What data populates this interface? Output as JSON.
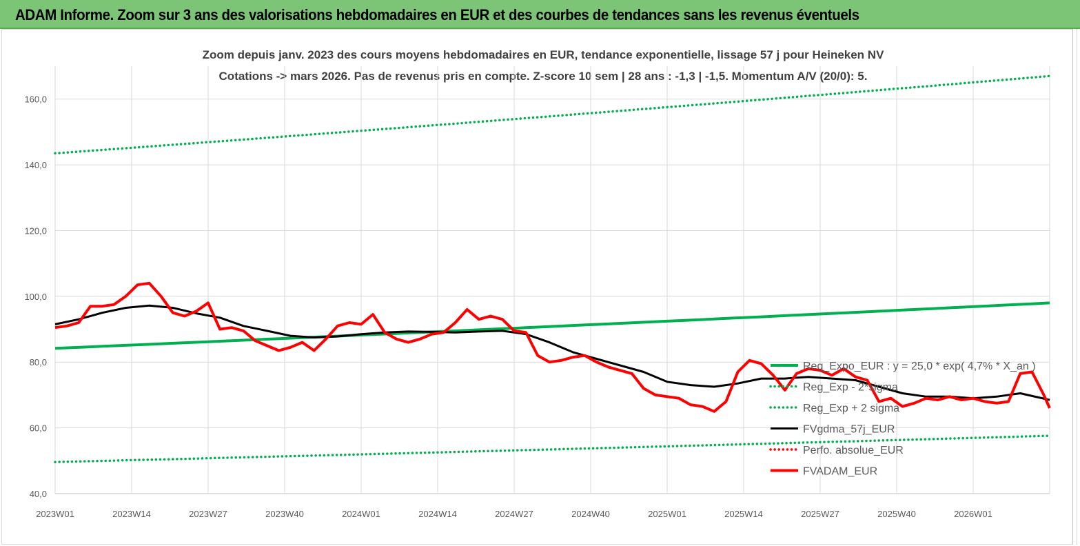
{
  "banner": {
    "title": "ADAM Informe. Zoom sur 3 ans des valorisations hebdomadaires en EUR et des courbes de tendances sans les revenus éventuels",
    "color": "#7cc576"
  },
  "chart_data": {
    "type": "line",
    "title": "Zoom depuis janv. 2023 des cours moyens hebdomadaires en EUR, tendance exponentielle, lissage 57 j pour Heineken NV",
    "subtitle": "Cotations -> mars 2026. Pas de revenus pris en  compte. Z-score 10 sem  | 28 ans : -1,3 | -1,5. Momentum A/V (20/0): 5.",
    "xlabel": "",
    "ylabel": "",
    "ylim": [
      40,
      170
    ],
    "y_ticks": [
      "40,0",
      "60,0",
      "80,0",
      "100,0",
      "120,0",
      "140,0",
      "160,0"
    ],
    "x_ticks": [
      "2023W01",
      "2023W14",
      "2023W27",
      "2023W40",
      "2024W01",
      "2024W14",
      "2024W27",
      "2024W40",
      "2025W01",
      "2025W14",
      "2025W27",
      "2025W40",
      "2026W01"
    ],
    "grid": true,
    "legend_position": "bottom-right",
    "trend_formula": {
      "base": 25.0,
      "rate": 0.047
    },
    "series": [
      {
        "name": "Reg_Expo_EUR : y = 25,0 * exp( 4,7% *  X_an )",
        "color": "#00b050",
        "style": "solid-thick",
        "x": [
          0,
          169
        ],
        "y": [
          84.2,
          98.0
        ]
      },
      {
        "name": "Reg_Exp - 2*sigma",
        "color": "#00b050",
        "style": "dotted",
        "x": [
          0,
          169
        ],
        "y": [
          49.6,
          57.6
        ]
      },
      {
        "name": "Reg_Exp + 2 sigma",
        "color": "#00b050",
        "style": "dotted",
        "x": [
          0,
          169
        ],
        "y": [
          143.5,
          167.0
        ]
      },
      {
        "name": "FVgdma_57j_EUR",
        "color": "#000000",
        "style": "solid",
        "x": [
          0,
          4,
          8,
          12,
          16,
          20,
          24,
          28,
          32,
          36,
          40,
          44,
          48,
          52,
          56,
          60,
          64,
          68,
          72,
          76,
          80,
          84,
          88,
          92,
          96,
          100,
          104,
          108,
          112,
          116,
          120,
          124,
          128,
          132,
          136,
          140,
          144,
          148,
          152,
          156,
          160,
          164,
          169
        ],
        "y": [
          91.5,
          93.0,
          95.0,
          96.5,
          97.2,
          96.5,
          94.8,
          93.5,
          91.0,
          89.5,
          88.0,
          87.5,
          87.8,
          88.5,
          89.0,
          89.3,
          89.2,
          89.0,
          89.3,
          89.5,
          88.5,
          86.0,
          83.0,
          81.0,
          79.0,
          77.0,
          74.0,
          73.0,
          72.5,
          73.5,
          75.0,
          75.0,
          75.5,
          75.0,
          74.5,
          72.5,
          70.5,
          69.5,
          69.5,
          69.0,
          69.5,
          70.5,
          68.5
        ]
      },
      {
        "name": "Perfo. absolue_EUR",
        "color": "#ff0000",
        "style": "dotted",
        "x": [],
        "y": []
      },
      {
        "name": "FVADAM_EUR",
        "color": "#ff0000",
        "style": "solid-thick",
        "x": [
          0,
          2,
          4,
          6,
          8,
          10,
          12,
          14,
          16,
          18,
          20,
          22,
          24,
          26,
          28,
          30,
          32,
          34,
          36,
          38,
          40,
          42,
          44,
          46,
          48,
          50,
          52,
          54,
          56,
          58,
          60,
          62,
          64,
          66,
          68,
          70,
          72,
          74,
          76,
          78,
          80,
          82,
          84,
          86,
          88,
          90,
          92,
          94,
          96,
          98,
          100,
          102,
          104,
          106,
          108,
          110,
          112,
          114,
          116,
          118,
          120,
          122,
          124,
          126,
          128,
          130,
          132,
          134,
          136,
          138,
          140,
          142,
          144,
          146,
          148,
          150,
          152,
          154,
          156,
          158,
          160,
          162,
          164,
          166,
          168,
          169
        ],
        "y": [
          90.5,
          91.0,
          92.0,
          97.0,
          97.0,
          97.5,
          100.0,
          103.5,
          104.0,
          100.0,
          95.0,
          94.0,
          95.5,
          98.0,
          90.0,
          90.5,
          89.5,
          86.5,
          85.0,
          83.5,
          84.5,
          86.0,
          83.5,
          87.0,
          91.0,
          92.0,
          91.5,
          94.5,
          89.0,
          87.0,
          86.0,
          87.0,
          88.5,
          89.0,
          92.0,
          96.0,
          93.0,
          94.0,
          93.0,
          89.5,
          89.0,
          82.0,
          80.0,
          80.5,
          81.5,
          82.0,
          80.0,
          78.5,
          77.5,
          76.5,
          72.0,
          70.0,
          69.5,
          69.0,
          67.0,
          66.5,
          65.0,
          68.0,
          77.0,
          80.5,
          79.5,
          76.0,
          71.5,
          76.5,
          78.0,
          77.5,
          76.0,
          78.0,
          75.5,
          74.5,
          68.0,
          69.0,
          66.5,
          67.5,
          69.0,
          68.5,
          69.5,
          68.5,
          69.0,
          68.0,
          67.5,
          68.0,
          76.5,
          77.0,
          70.0,
          66.0
        ]
      }
    ]
  }
}
